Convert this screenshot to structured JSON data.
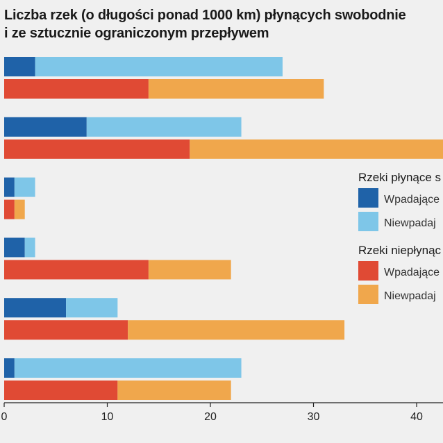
{
  "chart_data": {
    "type": "bar",
    "orientation": "horizontal",
    "stacked": true,
    "title_lines": [
      "Liczba rzek (o długości ponad 1000 km) płynących swobodnie",
      "i ze sztucznie ograniczonym przepływem"
    ],
    "xlim": [
      0,
      43
    ],
    "xticks": [
      "0",
      "10",
      "20",
      "30",
      "40"
    ],
    "grid": false,
    "legend_placement": "right (cut off)",
    "groups": [
      {
        "free": {
          "into_sea": 3,
          "not_into_sea": 24
        },
        "restricted": {
          "into_sea": 14,
          "not_into_sea": 17
        }
      },
      {
        "free": {
          "into_sea": 8,
          "not_into_sea": 15
        },
        "restricted": {
          "into_sea": 18,
          "not_into_sea": 25
        }
      },
      {
        "free": {
          "into_sea": 1,
          "not_into_sea": 2
        },
        "restricted": {
          "into_sea": 1,
          "not_into_sea": 1
        }
      },
      {
        "free": {
          "into_sea": 2,
          "not_into_sea": 1
        },
        "restricted": {
          "into_sea": 14,
          "not_into_sea": 8
        }
      },
      {
        "free": {
          "into_sea": 6,
          "not_into_sea": 5
        },
        "restricted": {
          "into_sea": 12,
          "not_into_sea": 21
        }
      },
      {
        "free": {
          "into_sea": 1,
          "not_into_sea": 22
        },
        "restricted": {
          "into_sea": 11,
          "not_into_sea": 11
        }
      }
    ],
    "legend": [
      {
        "heading": "Rzeki płynące s",
        "items": [
          {
            "key": "free.into_sea",
            "label": "Wpadające",
            "color": "#1f62a8"
          },
          {
            "key": "free.not_into_sea",
            "label": "Niewpadaj",
            "color": "#7ec6e8"
          }
        ]
      },
      {
        "heading": "Rzeki niepłynąc",
        "items": [
          {
            "key": "restricted.into_sea",
            "label": "Wpadające",
            "color": "#e04a34"
          },
          {
            "key": "restricted.not_into_sea",
            "label": "Niewpadaj",
            "color": "#f0a74c"
          }
        ]
      }
    ]
  }
}
